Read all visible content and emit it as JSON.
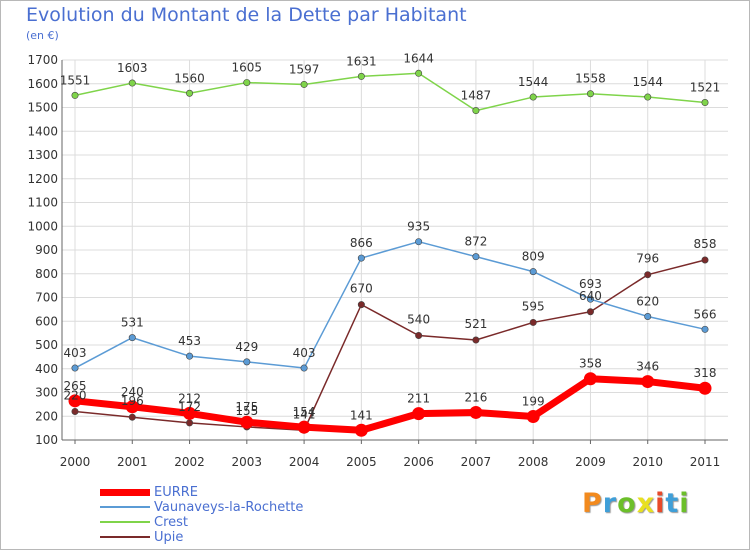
{
  "title": "Evolution du Montant de la Dette par Habitant",
  "subtitle": "(en €)",
  "logo": {
    "text": "Proxiti",
    "colors": [
      "#f28a1e",
      "#3f9fd8",
      "#6cbf2a",
      "#e8e020",
      "#e84a2a",
      "#3f9fd8",
      "#6cbf2a"
    ]
  },
  "chart_data": {
    "type": "line",
    "x": [
      "2000",
      "2001",
      "2002",
      "2003",
      "2004",
      "2005",
      "2006",
      "2007",
      "2008",
      "2009",
      "2010",
      "2011"
    ],
    "ylim": [
      100,
      1700
    ],
    "yticks": [
      "100",
      "200",
      "300",
      "400",
      "500",
      "600",
      "700",
      "800",
      "900",
      "1000",
      "1100",
      "1200",
      "1300",
      "1400",
      "1500",
      "1600",
      "1700"
    ],
    "grid": true,
    "legend_position": "bottom-left",
    "series": [
      {
        "name": "EURRE",
        "color": "#ff0000",
        "values": [
          265,
          240,
          212,
          175,
          154,
          141,
          211,
          216,
          199,
          358,
          346,
          318
        ]
      },
      {
        "name": "Vaunaveys-la-Rochette",
        "color": "#5b9bd5",
        "values": [
          403,
          531,
          453,
          429,
          403,
          866,
          935,
          872,
          809,
          693,
          620,
          566
        ]
      },
      {
        "name": "Crest",
        "color": "#7fd44a",
        "values": [
          1551,
          1603,
          1560,
          1605,
          1597,
          1631,
          1644,
          1487,
          1544,
          1558,
          1544,
          1521
        ]
      },
      {
        "name": "Upie",
        "color": "#7a2a2a",
        "values": [
          220,
          196,
          172,
          155,
          141,
          670,
          540,
          521,
          595,
          640,
          796,
          858
        ]
      }
    ]
  }
}
